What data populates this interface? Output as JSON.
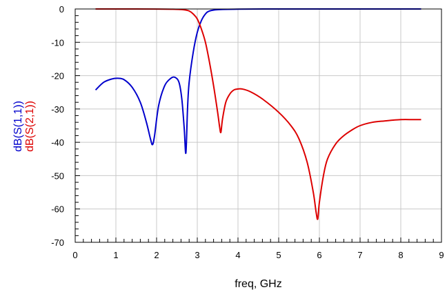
{
  "chart_data": {
    "type": "line",
    "xlabel": "freq, GHz",
    "ylabels": [
      "dB(S(1,1))",
      "dB(S(2,1))"
    ],
    "xlim": [
      0,
      9
    ],
    "ylim": [
      -70,
      0
    ],
    "x_ticks": [
      "0",
      "1",
      "2",
      "3",
      "4",
      "5",
      "6",
      "7",
      "8",
      "9"
    ],
    "y_ticks": [
      "0",
      "-10",
      "-20",
      "-30",
      "-40",
      "-50",
      "-60",
      "-70"
    ],
    "grid": true,
    "series": [
      {
        "name": "dB(S(1,1))",
        "color": "#0000cc",
        "x": [
          0.5,
          0.7,
          0.9,
          1.05,
          1.2,
          1.4,
          1.6,
          1.75,
          1.85,
          1.9,
          1.95,
          2.05,
          2.2,
          2.35,
          2.45,
          2.55,
          2.62,
          2.68,
          2.72,
          2.76,
          2.8,
          2.9,
          3.0,
          3.1,
          3.2,
          3.3,
          3.5,
          4,
          5,
          6,
          7,
          8,
          8.5
        ],
        "values": [
          -24.3,
          -22,
          -21,
          -20.8,
          -21.2,
          -23.5,
          -28,
          -34,
          -39,
          -40.7,
          -38,
          -29,
          -23,
          -20.8,
          -20.5,
          -22,
          -27,
          -36,
          -43.2,
          -30,
          -22,
          -13,
          -7,
          -3.5,
          -1.5,
          -0.6,
          -0.2,
          -0.05,
          0,
          0,
          0,
          0,
          0
        ]
      },
      {
        "name": "dB(S(2,1))",
        "color": "#dd0000",
        "x": [
          0.5,
          1,
          2,
          2.4,
          2.6,
          2.7,
          2.8,
          2.9,
          3.0,
          3.1,
          3.2,
          3.3,
          3.4,
          3.5,
          3.55,
          3.58,
          3.62,
          3.7,
          3.8,
          3.9,
          4.0,
          4.1,
          4.3,
          4.6,
          5.0,
          5.3,
          5.5,
          5.7,
          5.85,
          5.92,
          5.96,
          6.0,
          6.1,
          6.2,
          6.4,
          6.6,
          6.8,
          7.0,
          7.3,
          7.6,
          8.0,
          8.3,
          8.5
        ],
        "values": [
          0,
          0,
          -0.02,
          -0.08,
          -0.15,
          -0.3,
          -0.6,
          -1.5,
          -3,
          -6,
          -10,
          -16,
          -23,
          -31,
          -35.5,
          -37,
          -33,
          -28,
          -25.5,
          -24.3,
          -24,
          -24,
          -24.8,
          -27,
          -31,
          -35,
          -39,
          -46,
          -55,
          -61,
          -63,
          -58,
          -50,
          -45,
          -40.5,
          -38,
          -36.3,
          -35,
          -34,
          -33.6,
          -33.2,
          -33.2,
          -33.2
        ]
      }
    ]
  }
}
